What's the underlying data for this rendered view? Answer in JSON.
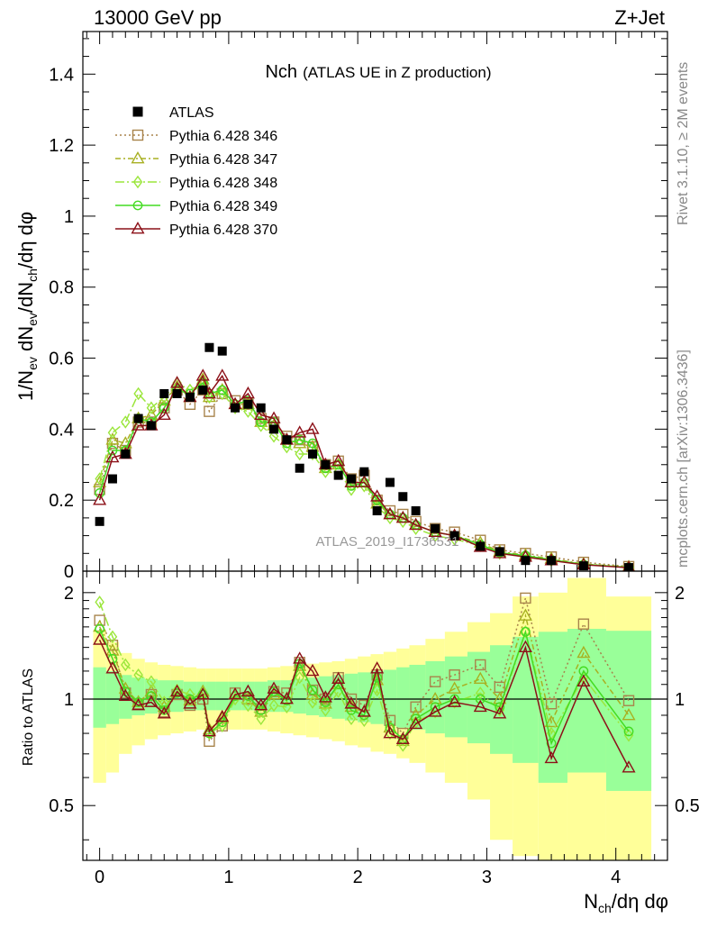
{
  "header": {
    "left": "13000 GeV pp",
    "right": "Z+Jet"
  },
  "side": {
    "rivet": "Rivet 3.1.10, ≥ 2M events",
    "mcplots": "mcplots.cern.ch [arXiv:1306.3436]"
  },
  "watermark": "ATLAS_2019_I1736531",
  "chart_data": {
    "type": "line",
    "title_main": "Nch",
    "title_sub": "(ATLAS UE in Z production)",
    "ylabel_main": "1/N_ev dN_ev/dN_ch/dη dφ",
    "ylabel_ratio": "Ratio to ATLAS",
    "xlabel": "N_ch/dη dφ",
    "xlim": [
      -0.13,
      4.4
    ],
    "ylim_main": [
      0,
      1.52
    ],
    "ylim_ratio": [
      0.35,
      2.3
    ],
    "yscale_ratio": "log",
    "xticks": [
      "0",
      "1",
      "2",
      "3",
      "4"
    ],
    "yticks_main": [
      "0",
      "0.2",
      "0.4",
      "0.6",
      "0.8",
      "1",
      "1.2",
      "1.4"
    ],
    "yticks_ratio": [
      "0.5",
      "1",
      "2"
    ],
    "legend_placement": "top-left",
    "x": [
      0.0,
      0.1,
      0.2,
      0.3,
      0.4,
      0.5,
      0.6,
      0.7,
      0.8,
      0.85,
      0.95,
      1.05,
      1.15,
      1.25,
      1.35,
      1.45,
      1.55,
      1.65,
      1.75,
      1.85,
      1.95,
      2.05,
      2.15,
      2.25,
      2.35,
      2.45,
      2.6,
      2.75,
      2.95,
      3.1,
      3.3,
      3.5,
      3.75,
      4.1
    ],
    "atlas": [
      0.14,
      0.26,
      0.33,
      0.43,
      0.41,
      0.5,
      0.5,
      0.49,
      0.51,
      0.63,
      0.62,
      0.46,
      0.47,
      0.46,
      0.4,
      0.37,
      0.29,
      0.33,
      0.3,
      0.27,
      0.26,
      0.28,
      0.17,
      0.25,
      0.21,
      0.17,
      0.12,
      0.1,
      0.07,
      0.055,
      0.03,
      0.03,
      0.015,
      0.01
    ],
    "series": [
      {
        "name": "Pythia 6.428 346",
        "color": "#a8844c",
        "marker": "square",
        "dash": "2,3",
        "values": [
          0.23,
          0.36,
          0.34,
          0.42,
          0.42,
          0.46,
          0.51,
          0.47,
          0.51,
          0.45,
          0.5,
          0.48,
          0.47,
          0.43,
          0.42,
          0.38,
          0.37,
          0.35,
          0.3,
          0.31,
          0.26,
          0.27,
          0.2,
          0.17,
          0.16,
          0.14,
          0.12,
          0.11,
          0.087,
          0.06,
          0.05,
          0.04,
          0.025,
          0.013
        ],
        "ratio": [
          1.67,
          1.42,
          1.04,
          0.97,
          1.03,
          0.92,
          1.03,
          0.96,
          1.0,
          0.76,
          0.84,
          1.04,
          1.0,
          0.94,
          1.05,
          1.04,
          1.27,
          1.06,
          1.0,
          1.15,
          1.0,
          0.96,
          1.17,
          0.87,
          0.8,
          0.95,
          1.12,
          1.17,
          1.25,
          1.08,
          1.93,
          0.97,
          1.63,
          0.99
        ]
      },
      {
        "name": "Pythia 6.428 347",
        "color": "#a8b022",
        "marker": "triangle",
        "dash": "6,3,2,3",
        "values": [
          0.25,
          0.37,
          0.36,
          0.43,
          0.44,
          0.48,
          0.52,
          0.49,
          0.54,
          0.49,
          0.51,
          0.47,
          0.47,
          0.42,
          0.41,
          0.37,
          0.36,
          0.35,
          0.29,
          0.3,
          0.25,
          0.25,
          0.19,
          0.16,
          0.15,
          0.13,
          0.11,
          0.1,
          0.08,
          0.055,
          0.045,
          0.035,
          0.02,
          0.012
        ],
        "ratio": [
          1.6,
          1.37,
          1.07,
          0.98,
          1.05,
          0.95,
          1.05,
          0.99,
          1.05,
          0.82,
          0.88,
          1.03,
          1.0,
          0.92,
          1.03,
          1.0,
          1.24,
          1.03,
          0.97,
          1.1,
          0.95,
          0.92,
          1.13,
          0.83,
          0.76,
          0.9,
          1.0,
          1.07,
          1.14,
          1.0,
          1.72,
          0.86,
          1.35,
          0.9
        ]
      },
      {
        "name": "Pythia 6.428 348",
        "color": "#9be63c",
        "marker": "diamond",
        "dash": "10,3,2,3",
        "values": [
          0.26,
          0.39,
          0.42,
          0.5,
          0.46,
          0.49,
          0.53,
          0.51,
          0.53,
          0.49,
          0.5,
          0.46,
          0.45,
          0.41,
          0.38,
          0.35,
          0.33,
          0.33,
          0.28,
          0.28,
          0.23,
          0.24,
          0.18,
          0.15,
          0.14,
          0.12,
          0.1,
          0.09,
          0.072,
          0.05,
          0.04,
          0.03,
          0.02,
          0.01
        ],
        "ratio": [
          1.88,
          1.5,
          1.25,
          1.17,
          1.12,
          0.98,
          1.06,
          1.03,
          1.04,
          0.8,
          0.84,
          1.0,
          0.96,
          0.88,
          0.96,
          0.95,
          1.15,
          0.98,
          0.93,
          1.05,
          0.88,
          0.87,
          1.06,
          0.8,
          0.74,
          0.86,
          0.92,
          0.98,
          1.04,
          0.93,
          1.55,
          0.8,
          1.15,
          0.79
        ]
      },
      {
        "name": "Pythia 6.428 349",
        "color": "#44dc22",
        "marker": "circle",
        "dash": "",
        "values": [
          0.22,
          0.34,
          0.34,
          0.43,
          0.42,
          0.46,
          0.51,
          0.5,
          0.53,
          0.5,
          0.51,
          0.47,
          0.48,
          0.42,
          0.42,
          0.36,
          0.37,
          0.36,
          0.29,
          0.3,
          0.24,
          0.25,
          0.2,
          0.16,
          0.15,
          0.13,
          0.11,
          0.1,
          0.075,
          0.052,
          0.044,
          0.032,
          0.019,
          0.011
        ],
        "ratio": [
          1.58,
          1.3,
          1.05,
          0.98,
          1.02,
          0.93,
          1.04,
          1.0,
          1.03,
          0.8,
          0.86,
          1.02,
          1.02,
          0.93,
          1.05,
          0.99,
          1.26,
          1.06,
          0.98,
          1.1,
          0.93,
          0.9,
          1.15,
          0.83,
          0.77,
          0.88,
          0.95,
          1.0,
          1.0,
          0.95,
          1.55,
          0.75,
          1.2,
          0.81
        ]
      },
      {
        "name": "Pythia 6.428 370",
        "color": "#8c1018",
        "marker": "triangle",
        "dash": "",
        "values": [
          0.2,
          0.32,
          0.33,
          0.41,
          0.41,
          0.44,
          0.53,
          0.49,
          0.55,
          0.5,
          0.55,
          0.47,
          0.5,
          0.44,
          0.43,
          0.37,
          0.39,
          0.4,
          0.3,
          0.31,
          0.25,
          0.25,
          0.21,
          0.16,
          0.15,
          0.13,
          0.11,
          0.1,
          0.068,
          0.05,
          0.04,
          0.03,
          0.018,
          0.01
        ],
        "ratio": [
          1.47,
          1.22,
          1.02,
          0.96,
          0.98,
          0.91,
          1.05,
          0.97,
          1.03,
          0.81,
          0.89,
          1.03,
          1.05,
          0.96,
          1.07,
          1.0,
          1.3,
          1.2,
          1.01,
          1.14,
          0.97,
          0.92,
          1.22,
          0.8,
          0.77,
          0.85,
          0.92,
          0.98,
          0.95,
          0.91,
          1.4,
          0.68,
          1.12,
          0.64
        ]
      }
    ],
    "ratio_band_inner": [
      [
        0.83,
        1.23
      ],
      [
        0.85,
        1.2
      ],
      [
        0.88,
        1.17
      ],
      [
        0.9,
        1.15
      ],
      [
        0.91,
        1.14
      ],
      [
        0.92,
        1.13
      ],
      [
        0.92,
        1.13
      ],
      [
        0.93,
        1.12
      ],
      [
        0.93,
        1.12
      ],
      [
        0.93,
        1.12
      ],
      [
        0.93,
        1.12
      ],
      [
        0.93,
        1.12
      ],
      [
        0.93,
        1.12
      ],
      [
        0.93,
        1.12
      ],
      [
        0.92,
        1.13
      ],
      [
        0.92,
        1.13
      ],
      [
        0.91,
        1.14
      ],
      [
        0.9,
        1.15
      ],
      [
        0.89,
        1.16
      ],
      [
        0.88,
        1.17
      ],
      [
        0.87,
        1.18
      ],
      [
        0.86,
        1.19
      ],
      [
        0.85,
        1.2
      ],
      [
        0.84,
        1.21
      ],
      [
        0.83,
        1.23
      ],
      [
        0.82,
        1.25
      ],
      [
        0.8,
        1.28
      ],
      [
        0.78,
        1.32
      ],
      [
        0.75,
        1.36
      ],
      [
        0.7,
        1.42
      ],
      [
        0.66,
        1.5
      ],
      [
        0.58,
        1.55
      ],
      [
        0.62,
        1.58
      ],
      [
        0.55,
        1.56
      ]
    ],
    "ratio_band_outer": [
      [
        0.58,
        1.55
      ],
      [
        0.62,
        1.45
      ],
      [
        0.7,
        1.35
      ],
      [
        0.74,
        1.3
      ],
      [
        0.77,
        1.27
      ],
      [
        0.79,
        1.25
      ],
      [
        0.8,
        1.24
      ],
      [
        0.81,
        1.23
      ],
      [
        0.82,
        1.22
      ],
      [
        0.82,
        1.22
      ],
      [
        0.82,
        1.22
      ],
      [
        0.82,
        1.22
      ],
      [
        0.82,
        1.22
      ],
      [
        0.82,
        1.22
      ],
      [
        0.81,
        1.23
      ],
      [
        0.8,
        1.24
      ],
      [
        0.79,
        1.25
      ],
      [
        0.78,
        1.26
      ],
      [
        0.77,
        1.27
      ],
      [
        0.76,
        1.28
      ],
      [
        0.74,
        1.3
      ],
      [
        0.73,
        1.32
      ],
      [
        0.71,
        1.34
      ],
      [
        0.7,
        1.36
      ],
      [
        0.68,
        1.39
      ],
      [
        0.66,
        1.42
      ],
      [
        0.62,
        1.48
      ],
      [
        0.58,
        1.55
      ],
      [
        0.52,
        1.65
      ],
      [
        0.4,
        1.75
      ],
      [
        0.36,
        1.95
      ],
      [
        0.35,
        2.0
      ],
      [
        0.35,
        2.2
      ],
      [
        0.35,
        1.95
      ]
    ]
  }
}
